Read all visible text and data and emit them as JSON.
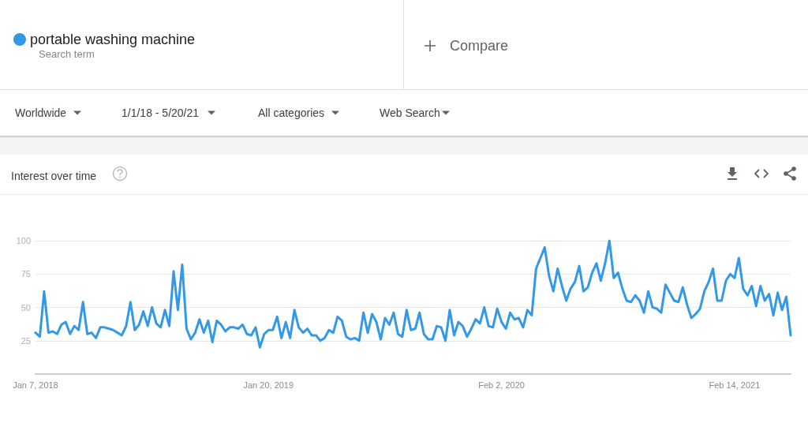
{
  "chart_data": {
    "type": "line",
    "title": "Interest over time",
    "annotations": [
      "Search term",
      "Compare",
      "Worldwide",
      "1/1/18 - 5/20/21",
      "All categories",
      "Web Search"
    ],
    "x": [
      "2018-01-07",
      "2018-01-14",
      "2018-01-21",
      "2018-01-28",
      "2018-02-04",
      "2018-02-11",
      "2018-02-18",
      "2018-02-25",
      "2018-03-04",
      "2018-03-11",
      "2018-03-18",
      "2018-03-25",
      "2018-04-01",
      "2018-04-08",
      "2018-04-15",
      "2018-04-22",
      "2018-04-29",
      "2018-05-06",
      "2018-05-13",
      "2018-05-20",
      "2018-05-27",
      "2018-06-03",
      "2018-06-10",
      "2018-06-17",
      "2018-06-24",
      "2018-07-01",
      "2018-07-08",
      "2018-07-15",
      "2018-07-22",
      "2018-07-29",
      "2018-08-05",
      "2018-08-12",
      "2018-08-19",
      "2018-08-26",
      "2018-09-02",
      "2018-09-09",
      "2018-09-16",
      "2018-09-23",
      "2018-09-30",
      "2018-10-07",
      "2018-10-14",
      "2018-10-21",
      "2018-10-28",
      "2018-11-04",
      "2018-11-11",
      "2018-11-18",
      "2018-11-25",
      "2018-12-02",
      "2018-12-09",
      "2018-12-16",
      "2018-12-23",
      "2018-12-30",
      "2019-01-06",
      "2019-01-13",
      "2019-01-20",
      "2019-01-27",
      "2019-02-03",
      "2019-02-10",
      "2019-02-17",
      "2019-02-24",
      "2019-03-03",
      "2019-03-10",
      "2019-03-17",
      "2019-03-24",
      "2019-03-31",
      "2019-04-07",
      "2019-04-14",
      "2019-04-21",
      "2019-04-28",
      "2019-05-05",
      "2019-05-12",
      "2019-05-19",
      "2019-05-26",
      "2019-06-02",
      "2019-06-09",
      "2019-06-16",
      "2019-06-23",
      "2019-06-30",
      "2019-07-07",
      "2019-07-14",
      "2019-07-21",
      "2019-07-28",
      "2019-08-04",
      "2019-08-11",
      "2019-08-18",
      "2019-08-25",
      "2019-09-01",
      "2019-09-08",
      "2019-09-15",
      "2019-09-22",
      "2019-09-29",
      "2019-10-06",
      "2019-10-13",
      "2019-10-20",
      "2019-10-27",
      "2019-11-03",
      "2019-11-10",
      "2019-11-17",
      "2019-11-24",
      "2019-12-01",
      "2019-12-08",
      "2019-12-15",
      "2019-12-22",
      "2019-12-29",
      "2020-01-05",
      "2020-01-12",
      "2020-01-19",
      "2020-01-26",
      "2020-02-02",
      "2020-02-09",
      "2020-02-16",
      "2020-02-23",
      "2020-03-01",
      "2020-03-08",
      "2020-03-15",
      "2020-03-22",
      "2020-03-29",
      "2020-04-05",
      "2020-04-12",
      "2020-04-19",
      "2020-04-26",
      "2020-05-03",
      "2020-05-10",
      "2020-05-17",
      "2020-05-24",
      "2020-05-31",
      "2020-06-07",
      "2020-06-14",
      "2020-06-21",
      "2020-06-28",
      "2020-07-05",
      "2020-07-12",
      "2020-07-19",
      "2020-07-26",
      "2020-08-02",
      "2020-08-09",
      "2020-08-16",
      "2020-08-23",
      "2020-08-30",
      "2020-09-06",
      "2020-09-13",
      "2020-09-20",
      "2020-09-27",
      "2020-10-04",
      "2020-10-11",
      "2020-10-18",
      "2020-10-25",
      "2020-11-01",
      "2020-11-08",
      "2020-11-15",
      "2020-11-22",
      "2020-11-29",
      "2020-12-06",
      "2020-12-13",
      "2020-12-20",
      "2020-12-27",
      "2021-01-03",
      "2021-01-10",
      "2021-01-17",
      "2021-01-24",
      "2021-01-31",
      "2021-02-07",
      "2021-02-14",
      "2021-02-21",
      "2021-02-28",
      "2021-03-07",
      "2021-03-14",
      "2021-03-21",
      "2021-03-28",
      "2021-04-04",
      "2021-04-11",
      "2021-04-18",
      "2021-04-25",
      "2021-05-02",
      "2021-05-09",
      "2021-05-16"
    ],
    "series": [
      {
        "name": "portable washing machine",
        "color": "#3399e6",
        "values": [
          31,
          28,
          62,
          31,
          32,
          30,
          37,
          39,
          30,
          36,
          33,
          54,
          30,
          31,
          27,
          35,
          35,
          34,
          33,
          31,
          29,
          36,
          54,
          33,
          37,
          47,
          36,
          50,
          38,
          35,
          48,
          36,
          77,
          48,
          82,
          34,
          26,
          31,
          41,
          31,
          40,
          24,
          40,
          37,
          32,
          35,
          35,
          34,
          37,
          30,
          29,
          35,
          20,
          30,
          33,
          33,
          43,
          27,
          39,
          27,
          48,
          35,
          31,
          34,
          29,
          29,
          25,
          27,
          33,
          31,
          43,
          40,
          28,
          26,
          27,
          25,
          46,
          31,
          45,
          39,
          26,
          42,
          37,
          46,
          30,
          28,
          48,
          33,
          34,
          46,
          30,
          26,
          26,
          36,
          35,
          25,
          48,
          29,
          39,
          36,
          28,
          34,
          41,
          38,
          50,
          36,
          35,
          49,
          39,
          34,
          46,
          41,
          42,
          35,
          48,
          44,
          79,
          87,
          95,
          74,
          62,
          79,
          66,
          55,
          64,
          69,
          81,
          62,
          65,
          76,
          83,
          70,
          83,
          100,
          72,
          76,
          64,
          55,
          54,
          59,
          55,
          46,
          62,
          50,
          49,
          46,
          67,
          61,
          55,
          54,
          65,
          52,
          42,
          45,
          49,
          62,
          69,
          79,
          55,
          55,
          70,
          75,
          72,
          87,
          64,
          59,
          66,
          51,
          66,
          55,
          60,
          44,
          61,
          48,
          58,
          29
        ]
      }
    ],
    "xlim": [
      "2018-01-07",
      "2021-05-16"
    ],
    "xticks": [
      {
        "value": "2018-01-07",
        "label": "Jan 7, 2018"
      },
      {
        "value": "2019-01-20",
        "label": "Jan 20, 2019"
      },
      {
        "value": "2020-02-02",
        "label": "Feb 2, 2020"
      },
      {
        "value": "2021-02-14",
        "label": "Feb 14, 2021"
      }
    ],
    "ylim": [
      0,
      100
    ],
    "yticks": [
      25,
      50,
      75,
      100
    ],
    "grid": "y",
    "legend": "top left",
    "marker": "none",
    "line_style": "solid"
  }
}
